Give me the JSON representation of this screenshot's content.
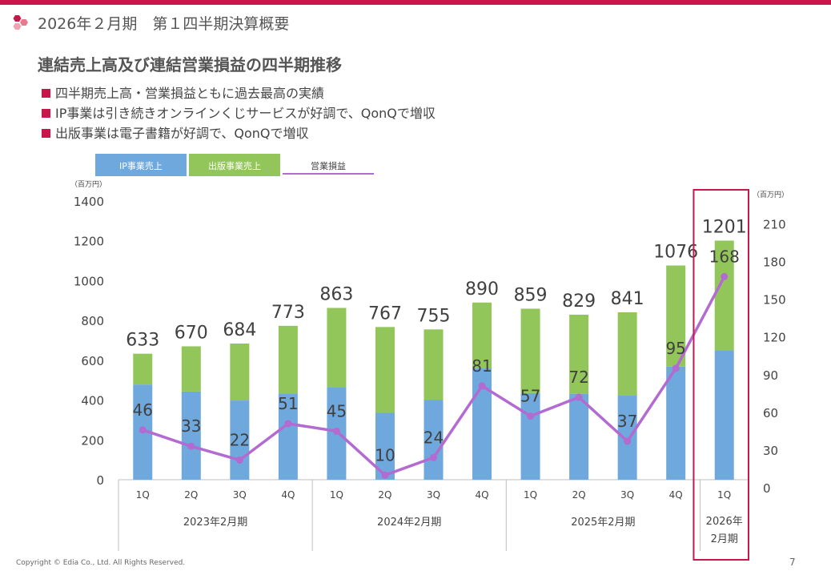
{
  "header": {
    "title": "2026年２月期　第１四半期決算概要"
  },
  "section": {
    "title": "連結売上高及び連結営業損益の四半期推移",
    "bullets": [
      "四半期売上高・営業損益ともに過去最高の実績",
      "IP事業は引き続きオンラインくじサービスが好調で、QonQで増収",
      "出版事業は電子書籍が好調で、QonQで増収"
    ]
  },
  "footer": {
    "copyright": "Copyright © Edia Co., Ltd. All Rights Reserved.",
    "page": "7"
  },
  "colors": {
    "accent": "#c8174a",
    "ip": "#6fa8dc",
    "publishing": "#93c65a",
    "operating": "#b36ad1"
  },
  "chart_data": {
    "type": "bar",
    "stacked": true,
    "quarters": [
      "1Q",
      "2Q",
      "3Q",
      "4Q",
      "1Q",
      "2Q",
      "3Q",
      "4Q",
      "1Q",
      "2Q",
      "3Q",
      "4Q",
      "1Q"
    ],
    "fiscal_years": [
      {
        "label": "2023年2月期",
        "span": 4
      },
      {
        "label": "2024年2月期",
        "span": 4
      },
      {
        "label": "2025年2月期",
        "span": 4
      },
      {
        "label": "2026年\n2月期",
        "span": 1
      }
    ],
    "series": [
      {
        "name": "IP事業売上",
        "type": "bar",
        "axis": "left",
        "values": [
          478,
          443,
          398,
          433,
          466,
          336,
          402,
          559,
          435,
          432,
          424,
          568,
          650
        ]
      },
      {
        "name": "出版事業売上",
        "type": "bar",
        "axis": "left",
        "values": [
          155,
          227,
          286,
          340,
          397,
          431,
          353,
          331,
          424,
          397,
          417,
          508,
          551
        ]
      },
      {
        "name": "営業損益",
        "type": "line",
        "axis": "right",
        "values": [
          46,
          33,
          22,
          51,
          45,
          10,
          24,
          81,
          57,
          72,
          37,
          95,
          168
        ]
      }
    ],
    "totals": [
      633,
      670,
      684,
      773,
      863,
      767,
      755,
      890,
      859,
      829,
      841,
      1076,
      1201
    ],
    "left_axis": {
      "unit": "（百万円）",
      "min": 0,
      "max": 1400,
      "ticks": [
        0,
        200,
        400,
        600,
        800,
        1000,
        1200,
        1400
      ]
    },
    "right_axis": {
      "unit": "（百万円）",
      "min": 0,
      "max": 225,
      "ticks": [
        0,
        30,
        60,
        90,
        120,
        150,
        180,
        210
      ]
    },
    "legend_position": "top-left",
    "highlight_index": 12
  }
}
